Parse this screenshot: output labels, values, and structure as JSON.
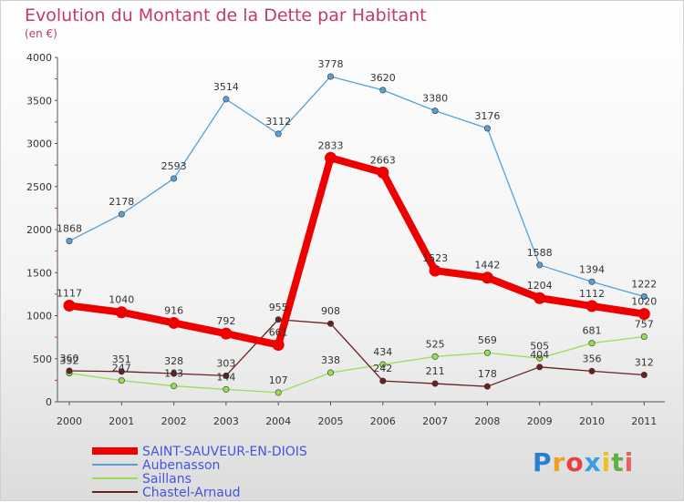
{
  "title": "Evolution du Montant de la Dette par Habitant",
  "subtitle": "(en €)",
  "logo": "Proxiti",
  "chart_data": {
    "type": "line",
    "title": "Evolution du Montant de la Dette par Habitant",
    "ylabel": "(en €)",
    "ylim": [
      0,
      4000
    ],
    "yticks": [
      0,
      500,
      1000,
      1500,
      2000,
      2500,
      3000,
      3500,
      4000
    ],
    "x": [
      "2000",
      "2001",
      "2002",
      "2003",
      "2004",
      "2005",
      "2006",
      "2007",
      "2008",
      "2009",
      "2010",
      "2011"
    ],
    "grid": false,
    "legend": "bottom-left",
    "series": [
      {
        "name": "SAINT-SAUVEUR-EN-DIOIS",
        "color": "#ee0000",
        "values": [
          1117,
          1040,
          916,
          792,
          661,
          2833,
          2663,
          1523,
          1442,
          1204,
          1112,
          1020
        ]
      },
      {
        "name": "Aubenasson",
        "color": "#5a9fd4",
        "values": [
          1868,
          2178,
          2593,
          3514,
          3112,
          3778,
          3620,
          3380,
          3176,
          1588,
          1394,
          1222
        ]
      },
      {
        "name": "Saillans",
        "color": "#99dd55",
        "values": [
          332,
          247,
          183,
          144,
          107,
          338,
          434,
          525,
          569,
          505,
          681,
          757
        ]
      },
      {
        "name": "Chastel-Arnaud",
        "color": "#6b2020",
        "values": [
          360,
          351,
          328,
          303,
          955,
          908,
          242,
          211,
          178,
          404,
          356,
          312
        ]
      }
    ]
  }
}
